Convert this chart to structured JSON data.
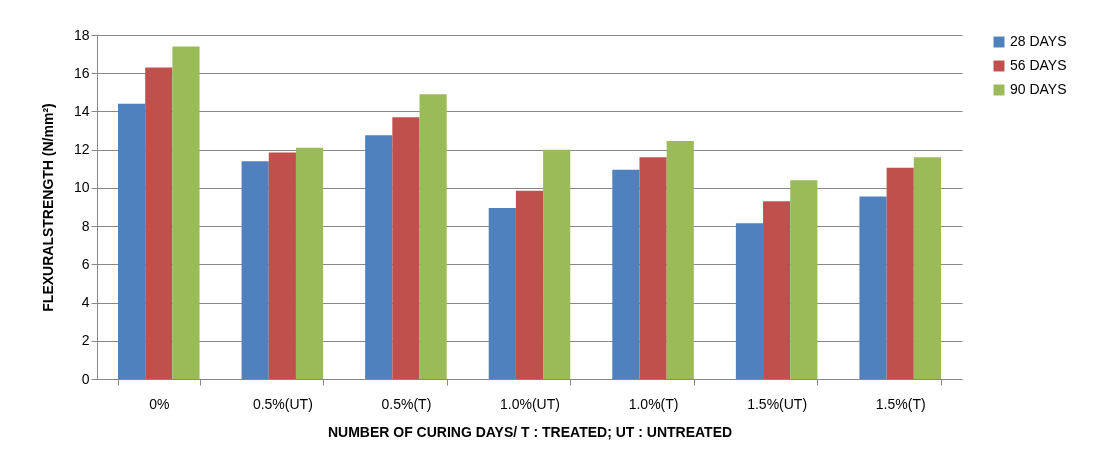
{
  "chart_data": {
    "type": "bar",
    "xlabel": "NUMBER OF CURING DAYS/ T : TREATED; UT : UNTREATED",
    "ylabel": "FLEXURALSTRENGTH (N/mm²)",
    "categories": [
      "0%",
      "0.5%(UT)",
      "0.5%(T)",
      "1.0%(UT)",
      "1.0%(T)",
      "1.5%(UT)",
      "1.5%(T)"
    ],
    "series": [
      {
        "name": "28 DAYS",
        "color": "#4f81bd",
        "values": [
          14.4,
          11.4,
          12.75,
          8.95,
          10.95,
          8.15,
          9.55
        ]
      },
      {
        "name": "56 DAYS",
        "color": "#c0504d",
        "values": [
          16.3,
          11.85,
          13.7,
          9.85,
          11.6,
          9.3,
          11.05
        ]
      },
      {
        "name": "90 DAYS",
        "color": "#9bbb59",
        "values": [
          17.4,
          12.1,
          14.9,
          12.0,
          12.45,
          10.4,
          11.6
        ]
      }
    ],
    "ylim": [
      0,
      18
    ],
    "yticks": [
      0,
      2,
      4,
      6,
      8,
      10,
      12,
      14,
      16,
      18
    ],
    "grid": "y",
    "legend": "right"
  }
}
